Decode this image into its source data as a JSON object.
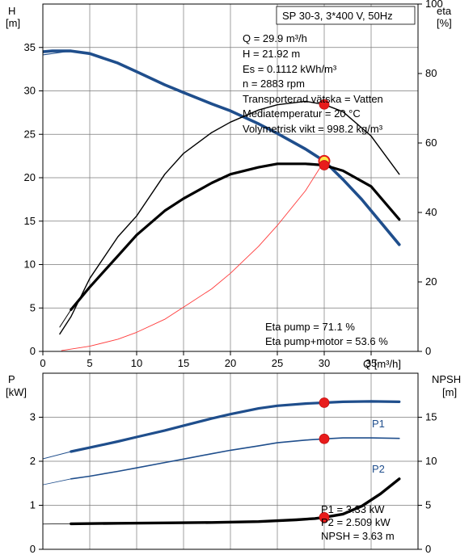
{
  "chart_data": [
    {
      "type": "line",
      "title": "SP 30-3, 3*400 V, 50Hz",
      "x_axis": {
        "label": "Q [m³/h]",
        "range": [
          0,
          40
        ],
        "ticks": [
          0,
          5,
          10,
          15,
          20,
          25,
          30,
          35
        ]
      },
      "left_axis": {
        "label_line1": "H",
        "label_line2": "[m]",
        "range": [
          0,
          40
        ],
        "ticks": [
          0,
          5,
          10,
          15,
          20,
          25,
          30,
          35
        ]
      },
      "right_axis": {
        "label_line1": "eta",
        "label_line2": "[%]",
        "range": [
          0,
          100
        ],
        "ticks": [
          0,
          20,
          40,
          60,
          80,
          100
        ]
      },
      "info_lines": [
        "Q = 29.9 m³/h",
        "H = 21.92 m",
        "Es = 0.1112 kWh/m³",
        "n = 2883 rpm",
        "Transporterad vätska = Vatten",
        "Mediatemperatur = 20 °C",
        "Volymetrisk vikt = 998.2 kg/m³"
      ],
      "eta_lines": [
        "Eta pump = 71.1 %",
        "Eta pump+motor = 53.6 %"
      ],
      "series": [
        {
          "axis": "left",
          "color": "#1f4e8c",
          "width": 3.6,
          "x": [
            0,
            1,
            2,
            3,
            5,
            8,
            10,
            13,
            15,
            18,
            20,
            23,
            25,
            28,
            30,
            32,
            34,
            36,
            38
          ],
          "y": [
            34.5,
            34.6,
            34.6,
            34.6,
            34.3,
            33.2,
            32.2,
            30.7,
            29.8,
            28.5,
            27.7,
            26.2,
            25.1,
            23.3,
            21.92,
            19.8,
            17.5,
            14.9,
            12.3
          ]
        },
        {
          "axis": "left",
          "color": "#1f4e8c",
          "width": 1.1,
          "x": [
            -1,
            3
          ],
          "y": [
            34.0,
            34.6
          ]
        },
        {
          "axis": "right",
          "color": "#000000",
          "width": 1.4,
          "x": [
            1.8,
            3,
            5,
            8,
            10,
            13,
            15,
            18,
            20,
            23,
            25,
            28,
            30,
            32,
            35,
            38
          ],
          "y": [
            5,
            10,
            21,
            33,
            39,
            51,
            57,
            63,
            66,
            69.5,
            71,
            72,
            71.1,
            69,
            62,
            51
          ]
        },
        {
          "axis": "right",
          "color": "#000000",
          "width": 3.2,
          "x": [
            3,
            5,
            8,
            10,
            13,
            15,
            18,
            20,
            23,
            25,
            28,
            30,
            32,
            35,
            38
          ],
          "y": [
            12,
            18.5,
            27.5,
            33.5,
            40.5,
            44,
            48.5,
            51,
            53,
            54,
            54,
            53.6,
            52,
            47.5,
            38
          ]
        },
        {
          "axis": "right",
          "color": "#000000",
          "width": 1.0,
          "x": [
            1.8,
            3
          ],
          "y": [
            7,
            12
          ]
        },
        {
          "axis": "left",
          "color": "#ff3a3a",
          "width": 0.9,
          "x": [
            2,
            5,
            8,
            10,
            13,
            15,
            18,
            20,
            23,
            25,
            28,
            30
          ],
          "y": [
            0.1,
            0.6,
            1.4,
            2.2,
            3.7,
            5.1,
            7.2,
            9.0,
            12.1,
            14.5,
            18.5,
            21.92
          ]
        }
      ],
      "points": [
        {
          "axis": "left",
          "x": 30,
          "y": 21.92,
          "style": "yellow"
        },
        {
          "axis": "right",
          "x": 30,
          "y": 71.1,
          "style": "red"
        },
        {
          "axis": "right",
          "x": 30,
          "y": 53.6,
          "style": "red"
        }
      ]
    },
    {
      "type": "line",
      "x_axis": {
        "range": [
          0,
          40
        ]
      },
      "left_axis": {
        "label_line1": "P",
        "label_line2": "[kW]",
        "range": [
          0,
          4
        ],
        "ticks": [
          0,
          1,
          2,
          3
        ]
      },
      "right_axis": {
        "label_line1": "NPSH",
        "label_line2": "[m]",
        "range": [
          0,
          20
        ],
        "ticks": [
          0,
          5,
          10,
          15
        ]
      },
      "info_lines": [
        "P1 = 3.33 kW",
        "P2 = 2.509 kW",
        "NPSH = 3.63 m"
      ],
      "series": [
        {
          "name": "P1",
          "axis": "left",
          "color": "#1f4e8c",
          "width": 3.2,
          "x": [
            3,
            5,
            8,
            10,
            13,
            15,
            18,
            20,
            23,
            25,
            28,
            30,
            32,
            35,
            38
          ],
          "y": [
            2.22,
            2.31,
            2.45,
            2.55,
            2.7,
            2.81,
            2.97,
            3.07,
            3.2,
            3.26,
            3.31,
            3.33,
            3.35,
            3.36,
            3.35
          ]
        },
        {
          "axis": "left",
          "color": "#1f4e8c",
          "width": 1.0,
          "x": [
            -1,
            3
          ],
          "y": [
            2.0,
            2.22
          ]
        },
        {
          "name": "P2",
          "axis": "left",
          "color": "#1f4e8c",
          "width": 1.6,
          "x": [
            3,
            5,
            8,
            10,
            13,
            15,
            18,
            20,
            23,
            25,
            28,
            30,
            32,
            35,
            38
          ],
          "y": [
            1.6,
            1.66,
            1.77,
            1.85,
            1.97,
            2.05,
            2.17,
            2.25,
            2.35,
            2.42,
            2.48,
            2.509,
            2.53,
            2.53,
            2.52
          ]
        },
        {
          "axis": "left",
          "color": "#1f4e8c",
          "width": 0.8,
          "x": [
            -1,
            3
          ],
          "y": [
            1.42,
            1.6
          ]
        },
        {
          "axis": "right",
          "color": "#000000",
          "width": 3.4,
          "x": [
            3,
            8,
            13,
            18,
            23,
            27,
            29,
            30,
            32,
            34,
            36,
            38
          ],
          "y": [
            2.9,
            2.95,
            3.0,
            3.05,
            3.15,
            3.35,
            3.5,
            3.63,
            4.0,
            4.9,
            6.3,
            8.0
          ]
        },
        {
          "axis": "right",
          "color": "#000000",
          "width": 0.8,
          "x": [
            -1,
            3
          ],
          "y": [
            2.85,
            2.9
          ]
        }
      ],
      "points": [
        {
          "axis": "left",
          "x": 30,
          "y": 3.33,
          "style": "red"
        },
        {
          "axis": "left",
          "x": 30,
          "y": 2.509,
          "style": "red"
        },
        {
          "axis": "right",
          "x": 30,
          "y": 3.63,
          "style": "red"
        }
      ]
    }
  ]
}
